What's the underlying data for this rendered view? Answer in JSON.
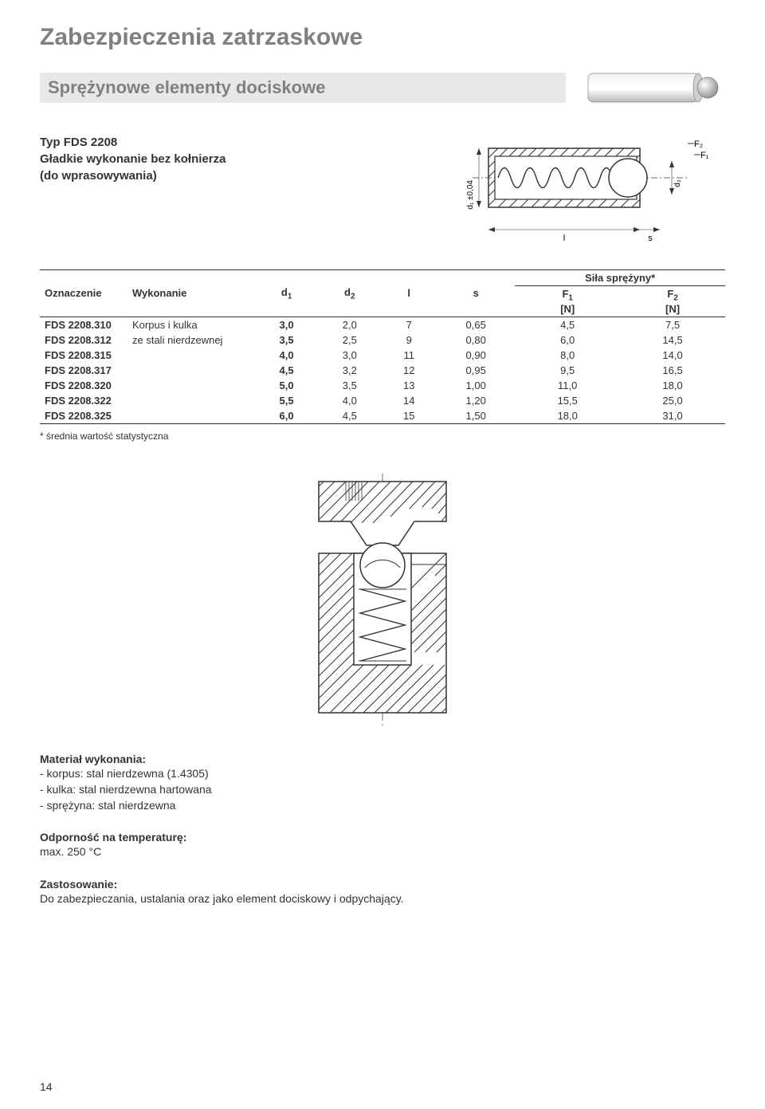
{
  "title": "Zabezpieczenia zatrzaskowe",
  "subtitle": "Sprężynowe elementy dociskowe",
  "type_label": "Typ FDS 2208",
  "desc_line1": "Gładkie wykonanie bez kołnierza",
  "desc_line2": "(do wprasowywania)",
  "table": {
    "headers": {
      "oznaczenie": "Oznaczenie",
      "wykonanie": "Wykonanie",
      "d1": "d",
      "d1_sub": "1",
      "d2": "d",
      "d2_sub": "2",
      "l": "l",
      "s": "s",
      "sila": "Siła sprężyny*",
      "f1": "F",
      "f1_sub": "1",
      "f2": "F",
      "f2_sub": "2",
      "unit": "[N]"
    },
    "material_line1": "Korpus i kulka",
    "material_line2": "ze stali nierdzewnej",
    "rows": [
      {
        "oz": "FDS 2208.310",
        "d1": "3,0",
        "d2": "2,0",
        "l": "7",
        "s": "0,65",
        "f1": "4,5",
        "f2": "7,5"
      },
      {
        "oz": "FDS 2208.312",
        "d1": "3,5",
        "d2": "2,5",
        "l": "9",
        "s": "0,80",
        "f1": "6,0",
        "f2": "14,5"
      },
      {
        "oz": "FDS 2208.315",
        "d1": "4,0",
        "d2": "3,0",
        "l": "11",
        "s": "0,90",
        "f1": "8,0",
        "f2": "14,0"
      },
      {
        "oz": "FDS 2208.317",
        "d1": "4,5",
        "d2": "3,2",
        "l": "12",
        "s": "0,95",
        "f1": "9,5",
        "f2": "16,5"
      },
      {
        "oz": "FDS 2208.320",
        "d1": "5,0",
        "d2": "3,5",
        "l": "13",
        "s": "1,00",
        "f1": "11,0",
        "f2": "18,0"
      },
      {
        "oz": "FDS 2208.322",
        "d1": "5,5",
        "d2": "4,0",
        "l": "14",
        "s": "1,20",
        "f1": "15,5",
        "f2": "25,0"
      },
      {
        "oz": "FDS 2208.325",
        "d1": "6,0",
        "d2": "4,5",
        "l": "15",
        "s": "1,50",
        "f1": "18,0",
        "f2": "31,0"
      }
    ]
  },
  "footnote": "* średnia wartość statystyczna",
  "material": {
    "heading": "Materiał wykonania:",
    "line1": "- korpus: stal nierdzewna (1.4305)",
    "line2": "- kulka: stal nierdzewna hartowana",
    "line3": "- sprężyna: stal nierdzewna"
  },
  "temp": {
    "heading": "Odporność na temperaturę:",
    "value": "max. 250 °C"
  },
  "application": {
    "heading": "Zastosowanie:",
    "text": "Do zabezpieczania, ustalania oraz jako element dociskowy i odpychający."
  },
  "page_number": "14",
  "d1_label": "d₁ ±0,04",
  "d2_label": "d₂",
  "l_label": "l",
  "s_label": "s",
  "f1_label": "F₁",
  "f2_label": "F₂"
}
